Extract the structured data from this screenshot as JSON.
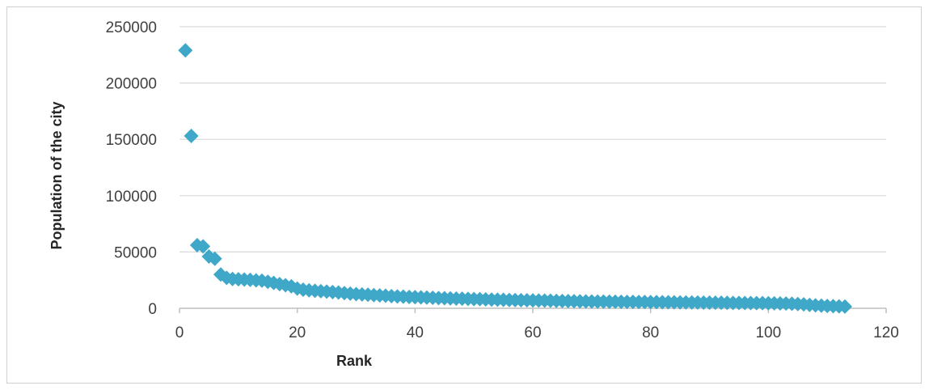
{
  "chart_data": {
    "type": "scatter",
    "title": "",
    "xlabel": "Rank",
    "ylabel": "Population of the city",
    "xlim": [
      0,
      120
    ],
    "ylim": [
      0,
      250000
    ],
    "x_ticks": [
      "0",
      "20",
      "40",
      "60",
      "80",
      "100",
      "120"
    ],
    "y_ticks": [
      "0",
      "50000",
      "100000",
      "150000",
      "200000",
      "250000"
    ],
    "grid": "horizontal",
    "legend": "none",
    "marker": "diamond",
    "color": "#3fa7c7",
    "grid_color": "#d9d9d9",
    "axis_color": "#bfbfbf",
    "series": [
      {
        "x": [
          1,
          2,
          3,
          4,
          5,
          6,
          7,
          8,
          9,
          10,
          11,
          12,
          13,
          14,
          15,
          16,
          17,
          18,
          19,
          20,
          21,
          22,
          23,
          24,
          25,
          26,
          27,
          28,
          29,
          30,
          31,
          32,
          33,
          34,
          35,
          36,
          37,
          38,
          39,
          40,
          41,
          42,
          43,
          44,
          45,
          46,
          47,
          48,
          49,
          50,
          51,
          52,
          53,
          54,
          55,
          56,
          57,
          58,
          59,
          60,
          61,
          62,
          63,
          64,
          65,
          66,
          67,
          68,
          69,
          70,
          71,
          72,
          73,
          74,
          75,
          76,
          77,
          78,
          79,
          80,
          81,
          82,
          83,
          84,
          85,
          86,
          87,
          88,
          89,
          90,
          91,
          92,
          93,
          94,
          95,
          96,
          97,
          98,
          99,
          100,
          101,
          102,
          103,
          104,
          105,
          106,
          107,
          108,
          109,
          110,
          111,
          112,
          113
        ],
        "y": [
          229000,
          153000,
          56000,
          55000,
          46000,
          44000,
          30000,
          27000,
          26000,
          25800,
          25500,
          25200,
          24800,
          24500,
          23500,
          22500,
          21500,
          20500,
          19500,
          17500,
          16500,
          16000,
          15500,
          15200,
          14800,
          14400,
          14000,
          13500,
          13000,
          12600,
          12300,
          12000,
          11700,
          11400,
          11100,
          10800,
          10500,
          10300,
          10100,
          9900,
          9700,
          9500,
          9300,
          9100,
          8950,
          8800,
          8650,
          8500,
          8350,
          8200,
          8050,
          7900,
          7750,
          7600,
          7500,
          7400,
          7300,
          7200,
          7100,
          7000,
          6900,
          6800,
          6700,
          6600,
          6500,
          6400,
          6300,
          6200,
          6100,
          6000,
          5950,
          5900,
          5850,
          5800,
          5750,
          5700,
          5650,
          5600,
          5550,
          5500,
          5450,
          5400,
          5350,
          5300,
          5250,
          5200,
          5150,
          5100,
          5050,
          5000,
          4950,
          4900,
          4850,
          4800,
          4750,
          4700,
          4650,
          4600,
          4550,
          4500,
          4400,
          4300,
          4200,
          4000,
          3800,
          3500,
          3000,
          2600,
          2300,
          2100,
          1900,
          1700,
          1500
        ]
      }
    ]
  }
}
